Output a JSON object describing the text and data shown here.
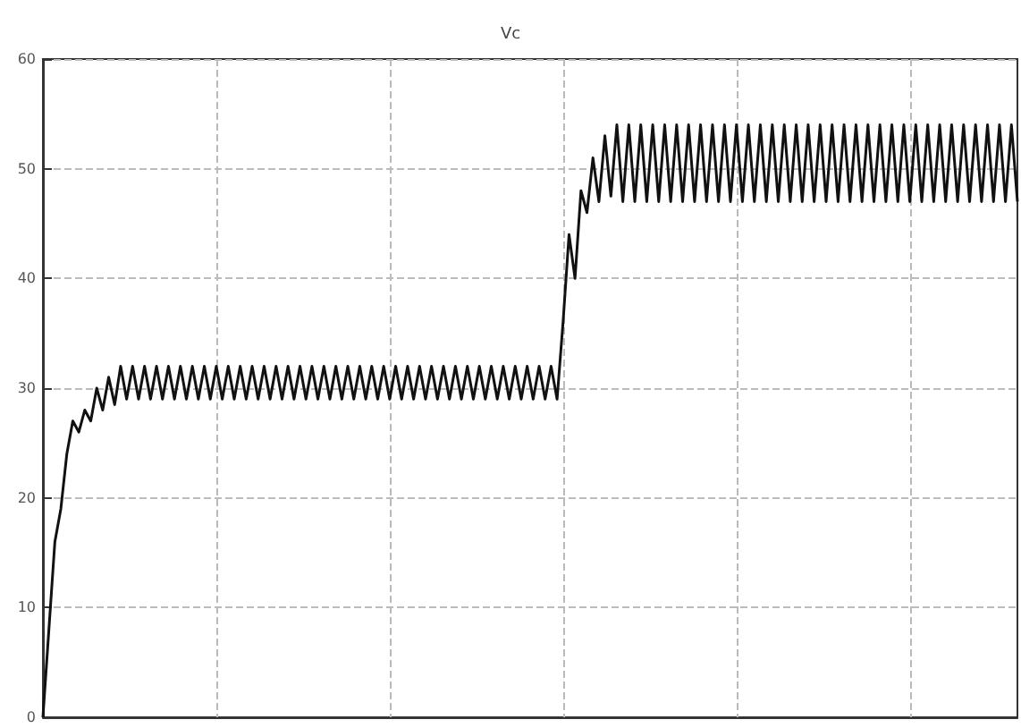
{
  "chart_data": {
    "type": "line",
    "title": "Vc",
    "color": "#111111",
    "grid": true,
    "line_style": "solid",
    "ylim": [
      0,
      60
    ],
    "yticks": [
      0,
      10,
      20,
      30,
      40,
      50,
      60
    ],
    "categories": [
      null,
      null,
      null,
      null,
      null,
      null,
      null,
      null,
      null,
      null,
      null,
      null,
      null,
      null,
      null,
      null,
      null,
      null,
      null,
      null,
      null,
      null,
      null,
      null,
      null,
      null,
      null,
      null,
      null,
      null,
      null,
      null,
      null,
      null,
      null,
      null,
      null,
      null,
      null,
      null,
      null,
      null,
      null,
      null,
      null,
      null,
      null,
      null,
      null,
      null,
      null,
      null,
      null,
      null,
      null,
      null,
      null,
      null,
      null,
      null,
      null,
      null,
      null,
      null,
      null,
      null,
      null,
      null,
      null,
      null,
      null,
      null,
      null,
      null,
      null,
      null,
      null,
      null,
      null,
      null,
      null,
      null,
      null,
      null,
      null,
      null,
      null,
      null,
      null,
      null,
      null,
      null,
      null,
      null,
      null,
      null,
      null,
      null,
      null,
      null,
      null,
      null,
      null,
      null,
      null,
      null,
      null,
      null,
      null,
      null,
      null,
      null,
      null,
      null,
      null,
      null,
      null,
      null,
      null,
      null,
      null,
      null,
      null,
      null,
      null,
      null,
      null,
      null,
      null,
      null,
      null,
      null,
      null,
      null,
      null,
      null,
      null,
      null,
      null,
      null,
      null,
      null,
      null,
      null,
      null,
      null,
      null,
      null,
      null,
      null,
      null,
      null,
      null,
      null,
      null,
      null,
      null,
      null,
      null,
      null,
      null,
      null,
      null,
      null
    ],
    "values": [
      0,
      8,
      16,
      19,
      24,
      27,
      26,
      28,
      27,
      30,
      28,
      31,
      28.5,
      32,
      29,
      32,
      29,
      32,
      29,
      32,
      29,
      32,
      29,
      32,
      29,
      32,
      29,
      32,
      29,
      32,
      29,
      32,
      29,
      32,
      29,
      32,
      29,
      32,
      29,
      32,
      29,
      32,
      29,
      32,
      29,
      32,
      29,
      32,
      29,
      32,
      29,
      32,
      29,
      32,
      29,
      32,
      29,
      32,
      29,
      32,
      29,
      32,
      29,
      32,
      29,
      32,
      29,
      32,
      29,
      32,
      29,
      32,
      29,
      32,
      29,
      32,
      29,
      32,
      29,
      32,
      29,
      32,
      29,
      32,
      29,
      32,
      29,
      36,
      44,
      40,
      48,
      46,
      51,
      47,
      53,
      47.5,
      54,
      47,
      54,
      47,
      54,
      47,
      54,
      47,
      54,
      47,
      54,
      47,
      54,
      47,
      54,
      47,
      54,
      47,
      54,
      47,
      54,
      47,
      54,
      47,
      54,
      47,
      54,
      47,
      54,
      47,
      54,
      47,
      54,
      47,
      54,
      47,
      54,
      47,
      54,
      47,
      54,
      47,
      54,
      47,
      54,
      47,
      54,
      47,
      54,
      47,
      54,
      47,
      54,
      47,
      54,
      47,
      54,
      47,
      54,
      47,
      54,
      47,
      54,
      47,
      54,
      47,
      54,
      47
    ]
  }
}
